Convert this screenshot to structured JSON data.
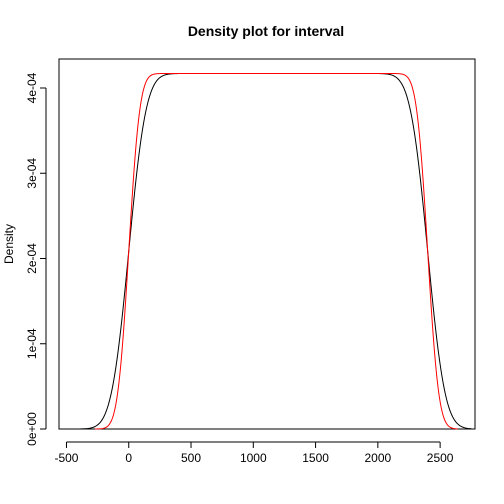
{
  "chart_data": {
    "type": "line",
    "title": "Density plot for interval",
    "xlabel": "",
    "ylabel": "Density",
    "xlim": [
      -560,
      2780
    ],
    "ylim": [
      0,
      0.000434
    ],
    "x_ticks": [
      -500,
      0,
      500,
      1000,
      1500,
      2000,
      2500
    ],
    "x_tick_labels": [
      "-500",
      "0",
      "500",
      "1000",
      "1500",
      "2000",
      "2500"
    ],
    "y_ticks": [
      0,
      0.0001,
      0.0002,
      0.0003,
      0.0004
    ],
    "y_tick_labels": [
      "0e+00",
      "1e-04",
      "2e-04",
      "3e-04",
      "4e-04"
    ],
    "grid": false,
    "series": [
      {
        "color": "#000000",
        "shape": {
          "plateau": 0.000417,
          "a": 0,
          "b": 2400,
          "spread": 110
        },
        "x_range": [
          -400,
          2750
        ]
      },
      {
        "color": "#ff0000",
        "shape": {
          "plateau": 0.000417,
          "a": 0,
          "b": 2400,
          "spread": 70
        },
        "x_range": [
          -270,
          2640
        ]
      }
    ]
  }
}
